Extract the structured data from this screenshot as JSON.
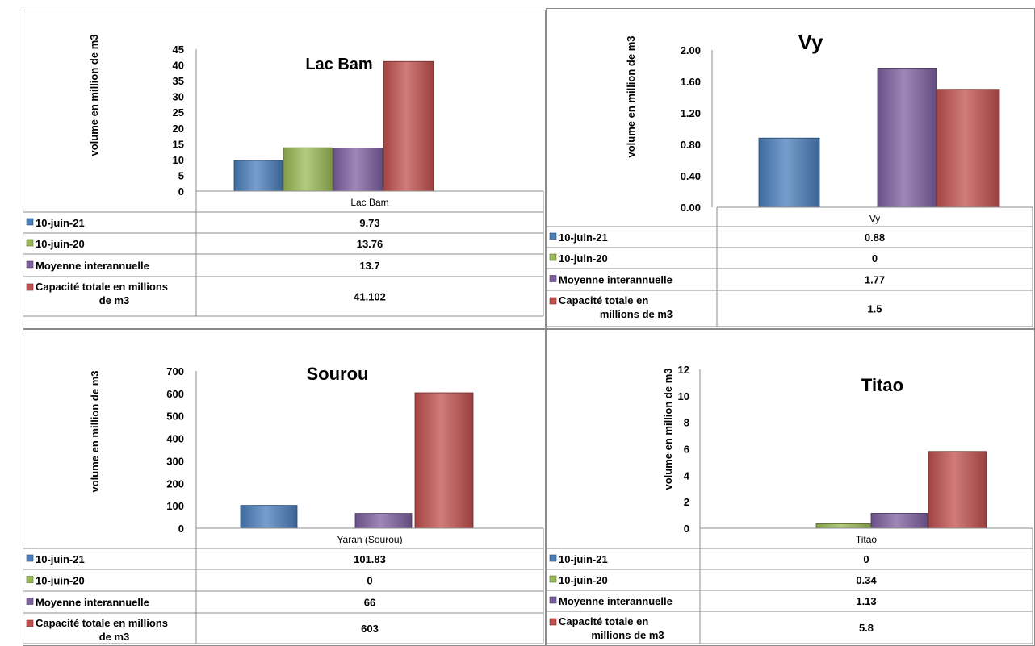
{
  "legend_labels": {
    "s1": "10-juin-21",
    "s2": "10-juin-20",
    "s3": "Moyenne interannuelle",
    "s4_line1": "Capacité totale en millions",
    "s4_line2": "de m3",
    "s4_short_line1": "Capacité totale en",
    "s4_short_line2": "millions de m3"
  },
  "colors": {
    "s1": "#4a7ebb",
    "s2": "#98b954",
    "s3": "#7d5fa0",
    "s4": "#c0504d"
  },
  "chart_data": [
    {
      "type": "bar",
      "title": "Lac Bam",
      "ylabel": "volume en million de m3",
      "category": "Lac Bam",
      "ylim": [
        0,
        45
      ],
      "yticks": [
        "0",
        "5",
        "10",
        "15",
        "20",
        "25",
        "30",
        "35",
        "40",
        "45"
      ],
      "values": [
        9.73,
        13.76,
        13.7,
        41.102
      ],
      "value_labels": [
        "9.73",
        "13.76",
        "13.7",
        "41.102"
      ],
      "series": [
        "10-juin-21",
        "10-juin-20",
        "Moyenne interannuelle",
        "Capacité totale en millions de m3"
      ]
    },
    {
      "type": "bar",
      "title": "Vy",
      "ylabel": "volume en million de m3",
      "category": "Vy",
      "ylim": [
        0,
        2
      ],
      "yticks": [
        "0.00",
        "0.40",
        "0.80",
        "1.20",
        "1.60",
        "2.00"
      ],
      "values": [
        0.88,
        0,
        1.77,
        1.5
      ],
      "value_labels": [
        "0.88",
        "0",
        "1.77",
        "1.5"
      ],
      "series": [
        "10-juin-21",
        "10-juin-20",
        "Moyenne interannuelle",
        "Capacité totale en millions de m3"
      ]
    },
    {
      "type": "bar",
      "title": "Sourou",
      "ylabel": "volume en million de m3",
      "category": "Yaran (Sourou)",
      "ylim": [
        0,
        700
      ],
      "yticks": [
        "0",
        "100",
        "200",
        "300",
        "400",
        "500",
        "600",
        "700"
      ],
      "values": [
        101.83,
        0,
        66,
        603
      ],
      "value_labels": [
        "101.83",
        "0",
        "66",
        "603"
      ],
      "series": [
        "10-juin-21",
        "10-juin-20",
        "Moyenne interannuelle",
        "Capacité totale en millions de m3"
      ]
    },
    {
      "type": "bar",
      "title": "Titao",
      "ylabel": "volume en million de m3",
      "category": "Titao",
      "ylim": [
        0,
        12
      ],
      "yticks": [
        "0",
        "2",
        "4",
        "6",
        "8",
        "10",
        "12"
      ],
      "values": [
        0,
        0.34,
        1.13,
        5.8
      ],
      "value_labels": [
        "0",
        "0.34",
        "1.13",
        "5.8"
      ],
      "series": [
        "10-juin-21",
        "10-juin-20",
        "Moyenne interannuelle",
        "Capacité totale en millions de m3"
      ]
    }
  ]
}
